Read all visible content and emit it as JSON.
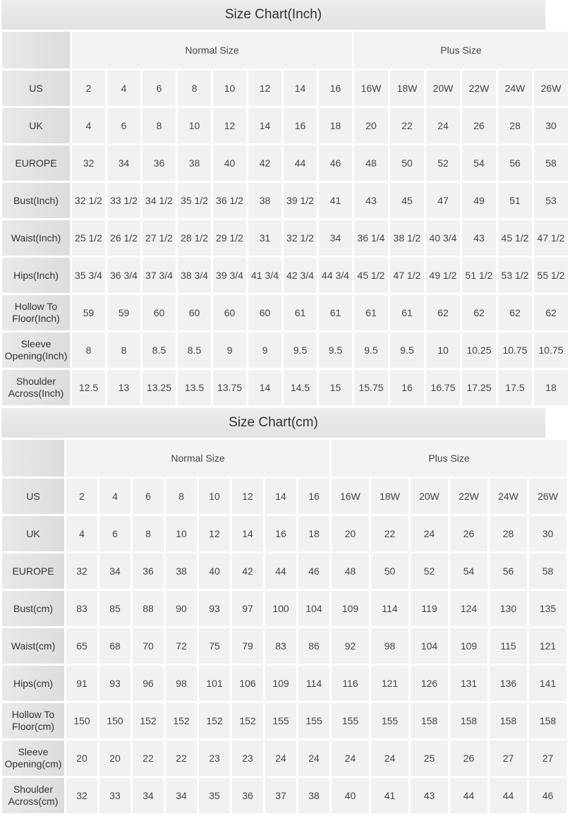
{
  "tables": [
    {
      "title": "Size Chart(Inch)",
      "groups": [
        "Normal Size",
        "Plus Size"
      ],
      "rows": [
        {
          "label": "US",
          "values": [
            "2",
            "4",
            "6",
            "8",
            "10",
            "12",
            "14",
            "16",
            "16W",
            "18W",
            "20W",
            "22W",
            "24W",
            "26W"
          ]
        },
        {
          "label": "UK",
          "values": [
            "4",
            "6",
            "8",
            "10",
            "12",
            "14",
            "16",
            "18",
            "20",
            "22",
            "24",
            "26",
            "28",
            "30"
          ]
        },
        {
          "label": "EUROPE",
          "values": [
            "32",
            "34",
            "36",
            "38",
            "40",
            "42",
            "44",
            "46",
            "48",
            "50",
            "52",
            "54",
            "56",
            "58"
          ]
        },
        {
          "label": "Bust(Inch)",
          "values": [
            "32 1/2",
            "33 1/2",
            "34 1/2",
            "35 1/2",
            "36 1/2",
            "38",
            "39 1/2",
            "41",
            "43",
            "45",
            "47",
            "49",
            "51",
            "53"
          ]
        },
        {
          "label": "Waist(Inch)",
          "values": [
            "25 1/2",
            "26 1/2",
            "27 1/2",
            "28 1/2",
            "29 1/2",
            "31",
            "32 1/2",
            "34",
            "36 1/4",
            "38 1/2",
            "40 3/4",
            "43",
            "45 1/2",
            "47 1/2"
          ]
        },
        {
          "label": "Hips(Inch)",
          "values": [
            "35 3/4",
            "36 3/4",
            "37 3/4",
            "38 3/4",
            "39 3/4",
            "41 3/4",
            "42 3/4",
            "44 3/4",
            "45 1/2",
            "47 1/2",
            "49 1/2",
            "51 1/2",
            "53 1/2",
            "55 1/2"
          ]
        },
        {
          "label": "Hollow To Floor(Inch)",
          "values": [
            "59",
            "59",
            "60",
            "60",
            "60",
            "60",
            "61",
            "61",
            "61",
            "61",
            "62",
            "62",
            "62",
            "62"
          ]
        },
        {
          "label": "Sleeve Opening(Inch)",
          "values": [
            "8",
            "8",
            "8.5",
            "8.5",
            "9",
            "9",
            "9.5",
            "9.5",
            "9.5",
            "9.5",
            "10",
            "10.25",
            "10.75",
            "10.75"
          ]
        },
        {
          "label": "Shoulder Across(Inch)",
          "values": [
            "12.5",
            "13",
            "13.25",
            "13.5",
            "13.75",
            "14",
            "14.5",
            "15",
            "15.75",
            "16",
            "16.75",
            "17.25",
            "17.5",
            "18"
          ]
        }
      ]
    },
    {
      "title": "Size Chart(cm)",
      "groups": [
        "Normal Size",
        "Plus Size"
      ],
      "rows": [
        {
          "label": "US",
          "values": [
            "2",
            "4",
            "6",
            "8",
            "10",
            "12",
            "14",
            "16",
            "16W",
            "18W",
            "20W",
            "22W",
            "24W",
            "26W"
          ]
        },
        {
          "label": "UK",
          "values": [
            "4",
            "6",
            "8",
            "10",
            "12",
            "14",
            "16",
            "18",
            "20",
            "22",
            "24",
            "26",
            "28",
            "30"
          ]
        },
        {
          "label": "EUROPE",
          "values": [
            "32",
            "34",
            "36",
            "38",
            "40",
            "42",
            "44",
            "46",
            "48",
            "50",
            "52",
            "54",
            "56",
            "58"
          ]
        },
        {
          "label": "Bust(cm)",
          "values": [
            "83",
            "85",
            "88",
            "90",
            "93",
            "97",
            "100",
            "104",
            "109",
            "114",
            "119",
            "124",
            "130",
            "135"
          ]
        },
        {
          "label": "Waist(cm)",
          "values": [
            "65",
            "68",
            "70",
            "72",
            "75",
            "79",
            "83",
            "86",
            "92",
            "98",
            "104",
            "109",
            "115",
            "121"
          ]
        },
        {
          "label": "Hips(cm)",
          "values": [
            "91",
            "93",
            "96",
            "98",
            "101",
            "106",
            "109",
            "114",
            "116",
            "121",
            "126",
            "131",
            "136",
            "141"
          ]
        },
        {
          "label": "Hollow To Floor(cm)",
          "values": [
            "150",
            "150",
            "152",
            "152",
            "152",
            "152",
            "155",
            "155",
            "155",
            "155",
            "158",
            "158",
            "158",
            "158"
          ]
        },
        {
          "label": "Sleeve Opening(cm)",
          "values": [
            "20",
            "20",
            "22",
            "22",
            "23",
            "23",
            "24",
            "24",
            "24",
            "24",
            "25",
            "26",
            "27",
            "27"
          ]
        },
        {
          "label": "Shoulder Across(cm)",
          "values": [
            "32",
            "33",
            "34",
            "34",
            "35",
            "36",
            "37",
            "38",
            "40",
            "41",
            "43",
            "44",
            "44",
            "46"
          ]
        }
      ]
    }
  ]
}
